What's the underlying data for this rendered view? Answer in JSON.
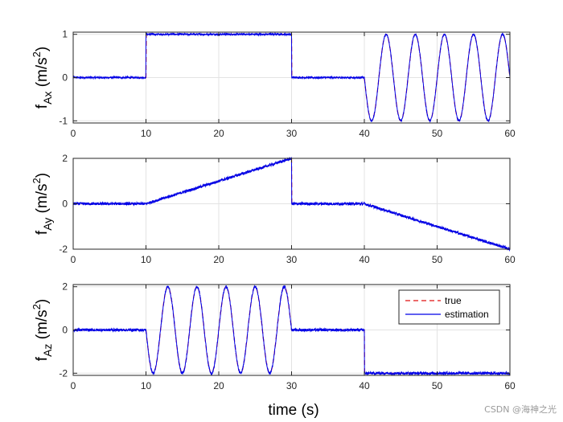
{
  "chart_data": [
    {
      "type": "line",
      "panel": "fAx",
      "ylabel": "f_Ax (m/s^2)",
      "ylabel_main": "f",
      "ylabel_sub": "Ax",
      "ylabel_unit": "(m/s",
      "ylabel_sup": "2",
      "ylabel_close": ")",
      "xlim": [
        0,
        60
      ],
      "ylim": [
        -1.05,
        1.05
      ],
      "xticks": [
        0,
        10,
        20,
        30,
        40,
        50,
        60
      ],
      "yticks": [
        -1,
        0,
        1
      ],
      "grid": true,
      "series": [
        {
          "name": "true",
          "color": "#e01010",
          "style": "dashed",
          "segments": [
            {
              "x": [
                0,
                10
              ],
              "kind": "constant",
              "value": 0
            },
            {
              "x": [
                10,
                30
              ],
              "kind": "constant",
              "value": 1
            },
            {
              "x": [
                30,
                40
              ],
              "kind": "constant",
              "value": 0
            },
            {
              "x": [
                40,
                60
              ],
              "kind": "sine",
              "amplitude": -1,
              "period": 4
            }
          ]
        },
        {
          "name": "estimation",
          "color": "#0000e6",
          "style": "solid",
          "noise": 0.02,
          "segments": [
            {
              "x": [
                0,
                10
              ],
              "kind": "constant",
              "value": 0
            },
            {
              "x": [
                10,
                30
              ],
              "kind": "constant",
              "value": 1
            },
            {
              "x": [
                30,
                40
              ],
              "kind": "constant",
              "value": 0
            },
            {
              "x": [
                40,
                60
              ],
              "kind": "sine",
              "amplitude": -1,
              "period": 4
            }
          ]
        }
      ]
    },
    {
      "type": "line",
      "panel": "fAy",
      "ylabel": "f_Ay (m/s^2)",
      "ylabel_main": "f",
      "ylabel_sub": "Ay",
      "ylabel_unit": "(m/s",
      "ylabel_sup": "2",
      "ylabel_close": ")",
      "xlim": [
        0,
        60
      ],
      "ylim": [
        -2,
        2
      ],
      "xticks": [
        0,
        10,
        20,
        30,
        40,
        50,
        60
      ],
      "yticks": [
        -2,
        0,
        2
      ],
      "grid": true,
      "series": [
        {
          "name": "true",
          "color": "#e01010",
          "style": "dashed",
          "segments": [
            {
              "x": [
                0,
                10
              ],
              "kind": "constant",
              "value": 0
            },
            {
              "x": [
                10,
                30
              ],
              "kind": "ramp",
              "from": 0,
              "to": 2
            },
            {
              "x": [
                30,
                40
              ],
              "kind": "constant",
              "value": 0
            },
            {
              "x": [
                40,
                60
              ],
              "kind": "ramp",
              "from": 0,
              "to": -2
            }
          ]
        },
        {
          "name": "estimation",
          "color": "#0000e6",
          "style": "solid",
          "noise": 0.03,
          "segments": [
            {
              "x": [
                0,
                10
              ],
              "kind": "constant",
              "value": 0
            },
            {
              "x": [
                10,
                30
              ],
              "kind": "ramp",
              "from": 0,
              "to": 2
            },
            {
              "x": [
                30,
                40
              ],
              "kind": "constant",
              "value": 0
            },
            {
              "x": [
                40,
                60
              ],
              "kind": "ramp",
              "from": 0,
              "to": -2
            }
          ]
        }
      ]
    },
    {
      "type": "line",
      "panel": "fAz",
      "ylabel": "f_Az (m/s^2)",
      "ylabel_main": "f",
      "ylabel_sub": "Az",
      "ylabel_unit": "(m/s",
      "ylabel_sup": "2",
      "ylabel_close": ")",
      "xlabel": "time (s)",
      "xlim": [
        0,
        60
      ],
      "ylim": [
        -2.1,
        2.1
      ],
      "xticks": [
        0,
        10,
        20,
        30,
        40,
        50,
        60
      ],
      "yticks": [
        -2,
        0,
        2
      ],
      "grid": true,
      "legend": {
        "position": "top-right",
        "entries": [
          "true",
          "estimation"
        ]
      },
      "series": [
        {
          "name": "true",
          "color": "#e01010",
          "style": "dashed",
          "segments": [
            {
              "x": [
                0,
                10
              ],
              "kind": "constant",
              "value": 0
            },
            {
              "x": [
                10,
                30
              ],
              "kind": "sine",
              "amplitude": -2,
              "period": 4
            },
            {
              "x": [
                30,
                40
              ],
              "kind": "constant",
              "value": 0
            },
            {
              "x": [
                40,
                60
              ],
              "kind": "constant",
              "value": -2
            }
          ]
        },
        {
          "name": "estimation",
          "color": "#0000e6",
          "style": "solid",
          "noise": 0.03,
          "segments": [
            {
              "x": [
                0,
                10
              ],
              "kind": "constant",
              "value": 0
            },
            {
              "x": [
                10,
                30
              ],
              "kind": "sine",
              "amplitude": -2,
              "period": 4
            },
            {
              "x": [
                30,
                40
              ],
              "kind": "constant",
              "value": 0
            },
            {
              "x": [
                40,
                60
              ],
              "kind": "constant",
              "value": -2
            }
          ]
        }
      ]
    }
  ],
  "xlabel": "time (s)",
  "watermark": "CSDN @海神之光"
}
